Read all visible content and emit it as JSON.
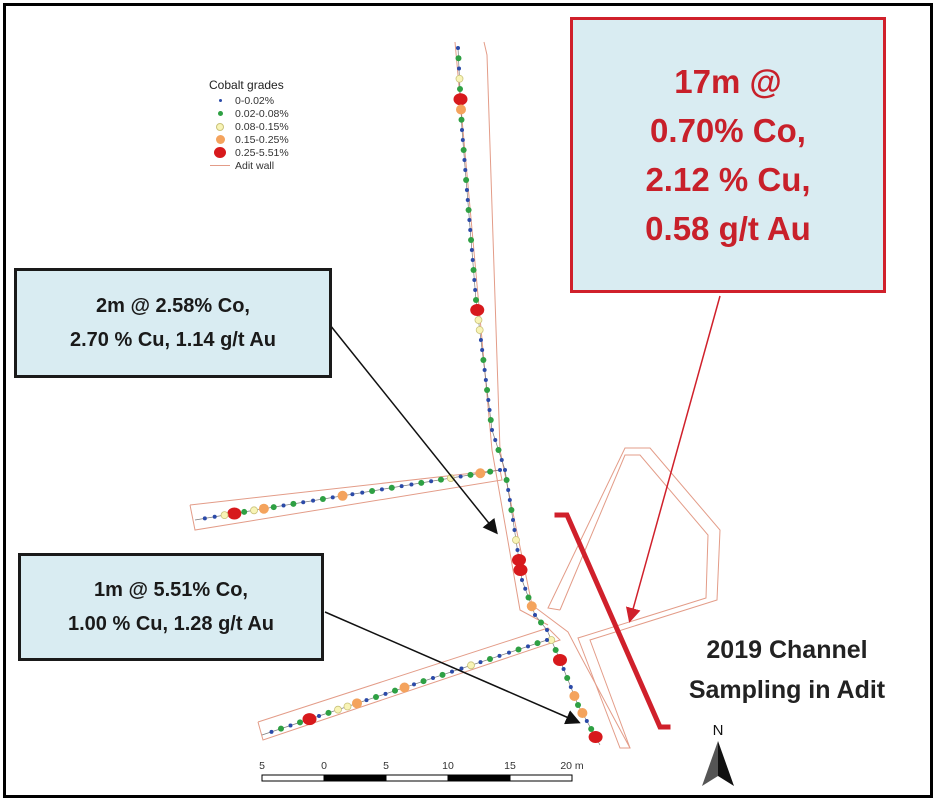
{
  "legend": {
    "title": "Cobalt grades",
    "items": [
      {
        "label": "0-0.02%",
        "color": "#2b4aa8",
        "size": 3
      },
      {
        "label": "0.02-0.08%",
        "color": "#2ea043",
        "size": 5
      },
      {
        "label": "0.08-0.15%",
        "color": "#f8f4b6",
        "size": 6
      },
      {
        "label": "0.15-0.25%",
        "color": "#f4a35d",
        "size": 9
      },
      {
        "label": "0.25-5.51%",
        "color": "#d7191c",
        "size": 12
      },
      {
        "label": "Adit wall",
        "color": "#e39c88",
        "type": "line"
      }
    ]
  },
  "callouts": {
    "two_m": {
      "line1": "2m @ 2.58% Co,",
      "line2": "2.70 % Cu, 1.14 g/t Au"
    },
    "one_m": {
      "line1": "1m @ 5.51% Co,",
      "line2": "1.00 % Cu, 1.28 g/t Au"
    },
    "seventeen_m": {
      "line1": "17m @",
      "line2": "0.70% Co,",
      "line3": "2.12 % Cu,",
      "line4": "0.58 g/t Au"
    }
  },
  "channel_title": {
    "line1": "2019 Channel",
    "line2": "Sampling in Adit"
  },
  "scale_bar": {
    "ticks": [
      "5",
      "0",
      "5",
      "10",
      "15",
      "20 m"
    ]
  },
  "north_arrow": {
    "label": "N"
  },
  "colors": {
    "adit_wall": "#e39c88",
    "highlight": "#d0202b",
    "callout_bg": "#d9ecf2"
  }
}
